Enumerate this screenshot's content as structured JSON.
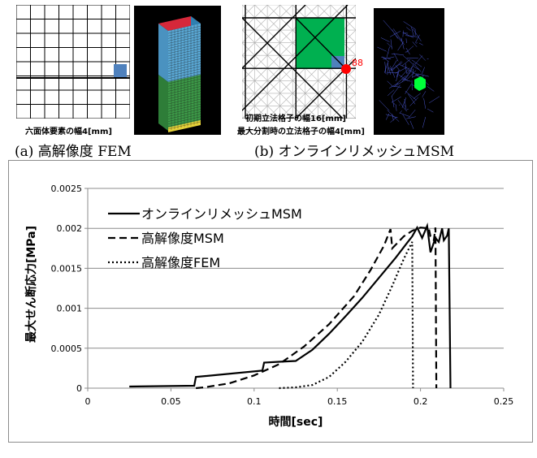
{
  "panel_a": {
    "mesh_label": "六面体要素の幅4[mm]",
    "caption": "(a) 高解像度 FEM"
  },
  "panel_b": {
    "mesh_label_1": "初期立法格子の幅16[mm]",
    "mesh_label_2": "最大分割時の立法格子の幅4[mm]",
    "marker_label": "88",
    "caption": "(b) オンラインリメッシュMSM"
  },
  "colors": {
    "grid_line": "#000000",
    "highlight_blue": "#4f81bd",
    "highlight_green": "#00b050",
    "marker_red": "#ff0000",
    "fem_top": "#d6283a",
    "fem_upper": "#5aa9d6",
    "fem_lower": "#3c9a47",
    "fem_bottom": "#e6d23a"
  },
  "chart_data": {
    "type": "line",
    "xlabel": "時間[sec]",
    "ylabel": "最大せん断応力[MPa]",
    "xlim": [
      0,
      0.25
    ],
    "ylim": [
      0,
      0.0025
    ],
    "x_ticks": [
      "0",
      "0.05",
      "0.1",
      "0.15",
      "0.2",
      "0.25"
    ],
    "y_ticks": [
      "0",
      "0.0005",
      "0.001",
      "0.0015",
      "0.002",
      "0.0025"
    ],
    "grid": "horizontal",
    "legend_position": "top-left",
    "series": [
      {
        "name": "オンラインリメッシュMSM",
        "style": "solid",
        "points": [
          [
            0.025,
            2e-05
          ],
          [
            0.064,
            3e-05
          ],
          [
            0.065,
            0.00014
          ],
          [
            0.105,
            0.00022
          ],
          [
            0.106,
            0.00032
          ],
          [
            0.115,
            0.00033
          ],
          [
            0.125,
            0.00034
          ],
          [
            0.135,
            0.00048
          ],
          [
            0.145,
            0.00068
          ],
          [
            0.155,
            0.0009
          ],
          [
            0.165,
            0.00113
          ],
          [
            0.175,
            0.00138
          ],
          [
            0.185,
            0.00163
          ],
          [
            0.192,
            0.00182
          ],
          [
            0.195,
            0.0019
          ],
          [
            0.198,
            0.00201
          ],
          [
            0.201,
            0.00188
          ],
          [
            0.204,
            0.00203
          ],
          [
            0.206,
            0.0017
          ],
          [
            0.209,
            0.00188
          ],
          [
            0.211,
            0.00183
          ],
          [
            0.213,
            0.002
          ],
          [
            0.214,
            0.00185
          ],
          [
            0.216,
            0.00191
          ],
          [
            0.217,
            0.002
          ],
          [
            0.218,
            0.0
          ]
        ]
      },
      {
        "name": "高解像度MSM",
        "style": "dashed",
        "points": [
          [
            0.065,
            0.0
          ],
          [
            0.07,
            1e-05
          ],
          [
            0.085,
            6e-05
          ],
          [
            0.1,
            0.00016
          ],
          [
            0.115,
            0.0003
          ],
          [
            0.13,
            0.00052
          ],
          [
            0.145,
            0.0008
          ],
          [
            0.16,
            0.00115
          ],
          [
            0.17,
            0.00148
          ],
          [
            0.178,
            0.00178
          ],
          [
            0.182,
            0.00199
          ],
          [
            0.183,
            0.00175
          ],
          [
            0.19,
            0.0019
          ],
          [
            0.195,
            0.00197
          ],
          [
            0.2,
            0.00201
          ],
          [
            0.205,
            0.002
          ],
          [
            0.206,
            0.0019
          ],
          [
            0.208,
            0.00185
          ],
          [
            0.209,
            0.00201
          ],
          [
            0.2095,
            0.0
          ]
        ]
      },
      {
        "name": "高解像度FEM",
        "style": "dotted",
        "points": [
          [
            0.115,
            0.0
          ],
          [
            0.125,
            1e-05
          ],
          [
            0.135,
            4e-05
          ],
          [
            0.145,
            0.00014
          ],
          [
            0.155,
            0.00033
          ],
          [
            0.165,
            0.00058
          ],
          [
            0.175,
            0.00092
          ],
          [
            0.183,
            0.00128
          ],
          [
            0.19,
            0.00162
          ],
          [
            0.195,
            0.00183
          ],
          [
            0.1955,
            0.0
          ]
        ]
      }
    ]
  }
}
